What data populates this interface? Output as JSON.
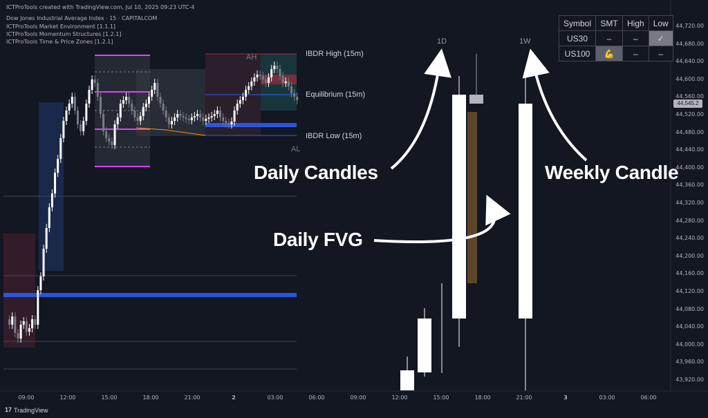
{
  "header": {
    "credit": "ICTProTools created with TradingView.com, Jul 10, 2025 09:23 UTC-4",
    "symbol": "Dow Jones Industrial Average Index · 15 · CAPITALCOM",
    "indicators": [
      "ICTProTools Market Environment [1.1.1]",
      "ICTProTools Momentum Structures [1.2.1]",
      "ICTProTools Time & Price Zones [1.2.1]"
    ]
  },
  "price_axis": [
    "44,720.00",
    "44,680.00",
    "44,640.00",
    "44,600.00",
    "44,560.00",
    "44,520.00",
    "44,480.00",
    "44,440.00",
    "44,400.00",
    "44,360.00",
    "44,320.00",
    "44,280.00",
    "44,240.00",
    "44,200.00",
    "44,160.00",
    "44,120.00",
    "44,080.00",
    "44,040.00",
    "44,000.00",
    "43,960.00",
    "43,920.00"
  ],
  "last_price": "44,545.2",
  "time_axis": [
    "09:00",
    "12:00",
    "15:00",
    "18:00",
    "21:00",
    "2",
    "03:00",
    "06:00",
    "09:00",
    "12:00",
    "15:00",
    "18:00",
    "21:00",
    "3",
    "03:00",
    "06:00"
  ],
  "labels": {
    "ibdr_high": "IBDR High (15m)",
    "equilibrium": "Equilibrium (15m)",
    "ibdr_low": "IBDR Low (15m)",
    "ah": "AH",
    "al": "AL",
    "tf_daily": "1D",
    "tf_weekly": "1W"
  },
  "annotations": {
    "daily_candles": "Daily Candles",
    "weekly_candle": "Weekly Candle",
    "daily_fvg": "Daily FVG"
  },
  "smt_table": {
    "headers": [
      "Symbol",
      "SMT",
      "High",
      "Low"
    ],
    "rows": [
      [
        "US30",
        "–",
        "–",
        "✓"
      ],
      [
        "US100",
        "💪",
        "–",
        "–"
      ]
    ]
  },
  "footer": {
    "brand": "TradingView"
  },
  "colors": {
    "background": "#131722",
    "magenta": "#e040fb",
    "blue_zone": "#2962ff",
    "fvg": "#5d4627"
  }
}
